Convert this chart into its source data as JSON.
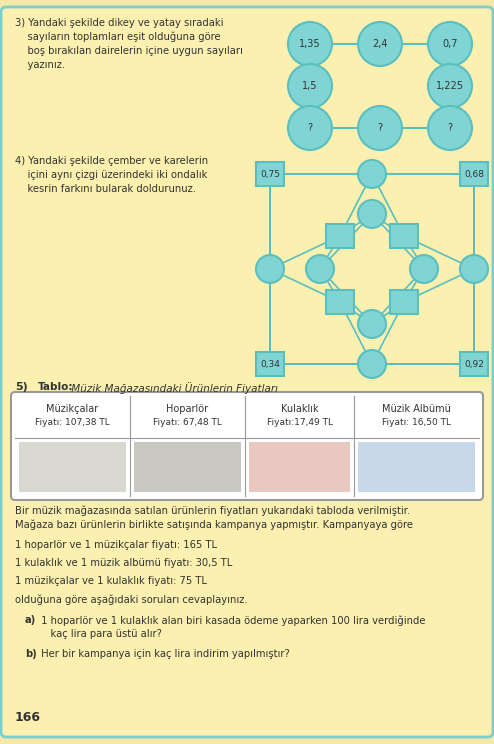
{
  "bg_color": "#F5E8A8",
  "teal": "#5BBFBF",
  "teal_fill": "#80D4D4",
  "teal_edge": "#4AABAB",
  "q3_text_line1": "3) Yandaki şekilde dikey ve yatay sıradaki",
  "q3_text_line2": "    sayıların toplamları eşit olduğuna göre",
  "q3_text_line3": "    boş bırakılan dairelerin içine uygun sayıları",
  "q3_text_line4": "    yazınız.",
  "q4_text_line1": "4) Yandaki şekilde çember ve karelerin",
  "q4_text_line2": "    içini aynı çizgi üzerindeki iki ondalık",
  "q4_text_line3": "    kesrin farkını bularak doldurunuz.",
  "q5_label": "5)",
  "q5_table_title_bold": "Tablo:",
  "q5_table_title_italic": " Müzik Mağazasındaki Ürünlerin Fiyatları",
  "table_headers": [
    "Müzikçalar",
    "Hoparlör",
    "Kulaklık",
    "Müzik Albümü"
  ],
  "table_prices": [
    "Fiyatı: 107,38 TL",
    "Fiyatı: 67,48 TL",
    "Fiyatı:17,49 TL",
    "Fiyatı: 16,50 TL"
  ],
  "para1_line1": "Bir müzik mağazasında satılan ürünlerin fiyatları yukarıdaki tabloda verilmiştir.",
  "para1_line2": "Mağaza bazı ürünlerin birlikte satışında kampanya yapmıştır. Kampanyaya göre",
  "bullet1": "1 hoparlör ve 1 müzikçalar fiyatı: 165 TL",
  "bullet2": "1 kulaklık ve 1 müzik albümü fiyatı: 30,5 TL",
  "bullet3": "1 müzikçalar ve 1 kulaklık fiyatı: 75 TL",
  "bullet4": "olduğuna göre aşağıdaki soruları cevaplayınız.",
  "qa_bold": "a)",
  "qa_text": " 1 hoparlör ve 1 kulaklık alan biri kasada ödeme yaparken 100 lira verdiğinde",
  "qa_text2": "    kaç lira para üstü alır?",
  "qb_bold": "b)",
  "qb_text": " Her bir kampanya için kaç lira indirim yapılmıştır?",
  "page_num": "166"
}
